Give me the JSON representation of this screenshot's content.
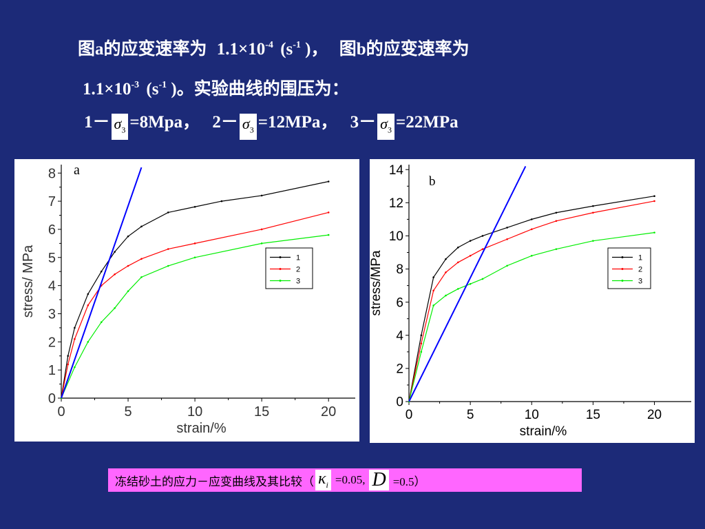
{
  "header": {
    "line1_a": "图a的应变速率为",
    "rate_a_base": "1.1×10",
    "rate_a_exp": "-4",
    "unit_open": "(s",
    "unit_exp": "-1",
    "unit_close_a": ")，",
    "line1_b": "图b的应变速率为",
    "rate_b_base": "1.1×10",
    "rate_b_exp": "-3",
    "unit_close_b": ")。实验曲线的围压为：",
    "sigma_symbol": "σ",
    "sigma_sub": "3",
    "p1_prefix": "1－",
    "p1_value": "=8Mpa，",
    "p2_prefix": "2－",
    "p2_value": "=12MPa，",
    "p3_prefix": "3－",
    "p3_value": "=22MPa"
  },
  "caption": {
    "text": "冻结砂土的应力－应变曲线及其比较（",
    "kappa_symbol": "κ",
    "kappa_sub": "i",
    "kappa_value": "=0.05,",
    "d_symbol": "D",
    "d_value": "=0.5）"
  },
  "colors": {
    "series1": "#000000",
    "series2": "#ff0000",
    "series3": "#00ee00",
    "reference_line": "#0000ff"
  },
  "chart_data": [
    {
      "type": "line",
      "panel_label": "a",
      "xlabel": "strain/%",
      "ylabel": "stress/ MPa",
      "xlim": [
        0,
        22
      ],
      "ylim": [
        0,
        8.3
      ],
      "xticks": [
        0,
        5,
        10,
        15,
        20
      ],
      "yticks": [
        0,
        1,
        2,
        3,
        4,
        5,
        6,
        7,
        8
      ],
      "grid": false,
      "legend_position": "center-right",
      "series": [
        {
          "name": "1",
          "color": "#000000",
          "x": [
            0,
            0.5,
            1,
            2,
            3,
            4,
            5,
            6,
            8,
            10,
            12,
            15,
            20
          ],
          "y": [
            0,
            1.5,
            2.5,
            3.7,
            4.5,
            5.2,
            5.75,
            6.1,
            6.6,
            6.8,
            7.0,
            7.2,
            7.7
          ]
        },
        {
          "name": "2",
          "color": "#ff0000",
          "x": [
            0,
            0.5,
            1,
            2,
            3,
            4,
            5,
            6,
            8,
            10,
            15,
            20
          ],
          "y": [
            0,
            1.2,
            2.1,
            3.3,
            4.0,
            4.4,
            4.7,
            4.95,
            5.3,
            5.5,
            6.0,
            6.6
          ]
        },
        {
          "name": "3",
          "color": "#00ee00",
          "x": [
            0,
            1,
            2,
            3,
            4,
            5,
            6,
            8,
            10,
            15,
            20
          ],
          "y": [
            0,
            1.1,
            2.0,
            2.7,
            3.2,
            3.8,
            4.3,
            4.7,
            5.0,
            5.5,
            5.8
          ]
        },
        {
          "x": [
            0,
            6
          ],
          "y": [
            0,
            8.2
          ],
          "color": "#0000ff"
        }
      ]
    },
    {
      "type": "line",
      "panel_label": "b",
      "xlabel": "strain/%",
      "ylabel": "stress/MPa",
      "xlim": [
        0,
        23
      ],
      "ylim": [
        0,
        14.3
      ],
      "xticks": [
        0,
        5,
        10,
        15,
        20
      ],
      "yticks": [
        0,
        2,
        4,
        6,
        8,
        10,
        12,
        14
      ],
      "grid": false,
      "legend_position": "center-right",
      "series": [
        {
          "name": "1",
          "color": "#000000",
          "x": [
            0,
            1,
            2,
            3,
            4,
            5,
            6,
            8,
            10,
            12,
            15,
            20
          ],
          "y": [
            0,
            4.0,
            7.5,
            8.6,
            9.3,
            9.7,
            10.0,
            10.5,
            11.0,
            11.4,
            11.8,
            12.4
          ]
        },
        {
          "name": "2",
          "color": "#ff0000",
          "x": [
            0,
            1,
            2,
            3,
            4,
            5,
            6,
            8,
            10,
            12,
            15,
            20
          ],
          "y": [
            0,
            3.5,
            6.7,
            7.8,
            8.4,
            8.8,
            9.2,
            9.8,
            10.4,
            10.9,
            11.4,
            12.1
          ]
        },
        {
          "name": "3",
          "color": "#00ee00",
          "x": [
            0,
            1,
            2,
            3,
            4,
            5,
            6,
            8,
            10,
            12,
            15,
            20
          ],
          "y": [
            0,
            3.0,
            5.8,
            6.4,
            6.8,
            7.1,
            7.4,
            8.2,
            8.8,
            9.2,
            9.7,
            10.2
          ]
        },
        {
          "x": [
            0,
            9.5
          ],
          "y": [
            0,
            14.2
          ],
          "color": "#0000ff"
        }
      ]
    }
  ]
}
